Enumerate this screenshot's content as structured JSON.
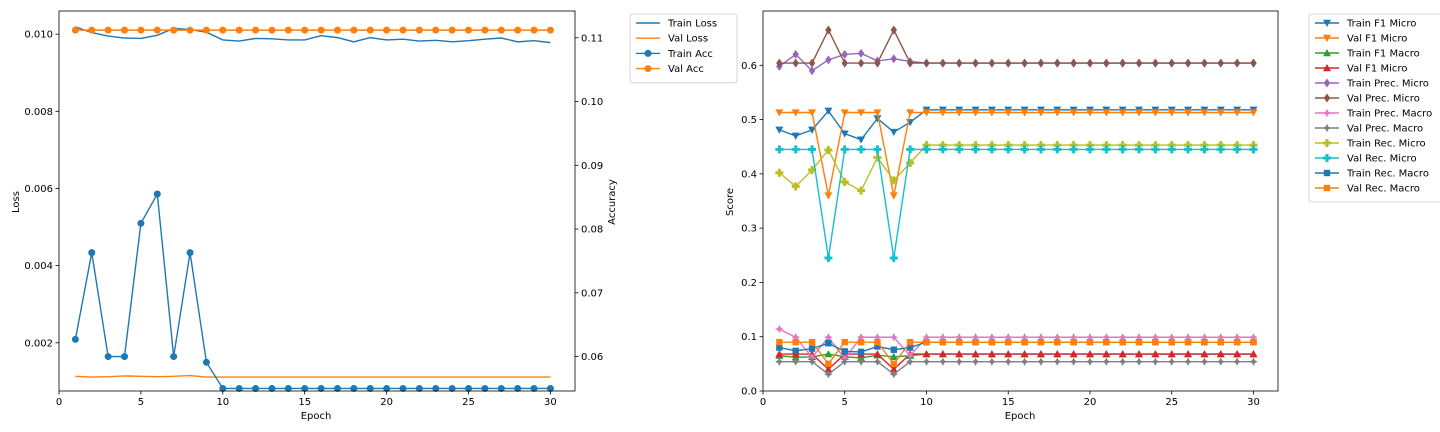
{
  "colors": {
    "blue": "#1f77b4",
    "orange": "#ff7f0e",
    "green": "#2ca02c",
    "red": "#d62728",
    "purple": "#9467bd",
    "brown": "#8c564b",
    "pink": "#e377c2",
    "gray": "#7f7f7f",
    "olive": "#bcbd22",
    "cyan": "#17becf"
  },
  "chart_data": [
    {
      "type": "line",
      "xlabel": "Epoch",
      "ylabel": "Loss",
      "y2label": "Accuracy",
      "xlim": [
        0,
        31.5
      ],
      "ylim": [
        0.00075,
        0.0106
      ],
      "y2lim": [
        0.0546,
        0.1142
      ],
      "xticks": [
        0,
        5,
        10,
        15,
        20,
        25,
        30
      ],
      "yticks": [
        0.002,
        0.004,
        0.006,
        0.008,
        0.01
      ],
      "ytick_labels": [
        "0.002",
        "0.004",
        "0.006",
        "0.008",
        "0.010"
      ],
      "y2ticks": [
        0.06,
        0.07,
        0.08,
        0.09,
        0.1,
        0.11
      ],
      "y2tick_labels": [
        "0.06",
        "0.07",
        "0.08",
        "0.09",
        "0.10",
        "0.11"
      ],
      "legend_position": "outside-right",
      "x": [
        1,
        2,
        3,
        4,
        5,
        6,
        7,
        8,
        9,
        10,
        11,
        12,
        13,
        14,
        15,
        16,
        17,
        18,
        19,
        20,
        21,
        22,
        23,
        24,
        25,
        26,
        27,
        28,
        29,
        30
      ],
      "series": [
        {
          "name": "Train Loss",
          "axis": "left",
          "color": "blue",
          "marker": "none",
          "values": [
            0.01019,
            0.01004,
            0.00995,
            0.0099,
            0.00989,
            0.00997,
            0.01015,
            0.01012,
            0.01005,
            0.00985,
            0.00982,
            0.00989,
            0.00988,
            0.00985,
            0.00985,
            0.00996,
            0.00991,
            0.0098,
            0.00991,
            0.00985,
            0.00987,
            0.00982,
            0.00984,
            0.0098,
            0.00983,
            0.00987,
            0.0099,
            0.0098,
            0.00983,
            0.00978
          ]
        },
        {
          "name": "Val Loss",
          "axis": "left",
          "color": "orange",
          "marker": "none",
          "values": [
            0.00113,
            0.00111,
            0.00112,
            0.00114,
            0.00113,
            0.00112,
            0.00113,
            0.00115,
            0.00111,
            0.00111,
            0.00111,
            0.00111,
            0.00111,
            0.00111,
            0.00111,
            0.00111,
            0.00111,
            0.00111,
            0.00111,
            0.00111,
            0.00111,
            0.00111,
            0.00111,
            0.00111,
            0.00111,
            0.00111,
            0.00111,
            0.00111,
            0.00111,
            0.00111
          ]
        },
        {
          "name": "Train Acc",
          "axis": "right",
          "color": "blue",
          "marker": "circle",
          "values": [
            0.0627,
            0.0763,
            0.06,
            0.06,
            0.0809,
            0.0855,
            0.06,
            0.0763,
            0.0591,
            0.055,
            0.055,
            0.055,
            0.055,
            0.055,
            0.055,
            0.055,
            0.055,
            0.055,
            0.055,
            0.055,
            0.055,
            0.055,
            0.055,
            0.055,
            0.055,
            0.055,
            0.055,
            0.055,
            0.055,
            0.055
          ]
        },
        {
          "name": "Val Acc",
          "axis": "right",
          "color": "orange",
          "marker": "circle",
          "values": [
            0.1112,
            0.1112,
            0.1112,
            0.1112,
            0.1112,
            0.1112,
            0.1112,
            0.1112,
            0.1112,
            0.1112,
            0.1112,
            0.1112,
            0.1112,
            0.1112,
            0.1112,
            0.1112,
            0.1112,
            0.1112,
            0.1112,
            0.1112,
            0.1112,
            0.1112,
            0.1112,
            0.1112,
            0.1112,
            0.1112,
            0.1112,
            0.1112,
            0.1112,
            0.1112
          ]
        }
      ]
    },
    {
      "type": "line",
      "xlabel": "Epoch",
      "ylabel": "Score",
      "xlim": [
        0,
        31.5
      ],
      "ylim": [
        0,
        0.7
      ],
      "xticks": [
        0,
        5,
        10,
        15,
        20,
        25,
        30
      ],
      "yticks": [
        0.0,
        0.1,
        0.2,
        0.3,
        0.4,
        0.5,
        0.6
      ],
      "ytick_labels": [
        "0.0",
        "0.1",
        "0.2",
        "0.3",
        "0.4",
        "0.5",
        "0.6"
      ],
      "legend_position": "outside-right",
      "x": [
        1,
        2,
        3,
        4,
        5,
        6,
        7,
        8,
        9,
        10,
        11,
        12,
        13,
        14,
        15,
        16,
        17,
        18,
        19,
        20,
        21,
        22,
        23,
        24,
        25,
        26,
        27,
        28,
        29,
        30
      ],
      "series": [
        {
          "name": "Train F1 Micro",
          "color": "blue",
          "marker": "triangle-down",
          "values": [
            0.481,
            0.47,
            0.481,
            0.516,
            0.474,
            0.463,
            0.502,
            0.477,
            0.495,
            0.518,
            0.518,
            0.518,
            0.518,
            0.518,
            0.518,
            0.518,
            0.518,
            0.518,
            0.518,
            0.518,
            0.518,
            0.518,
            0.518,
            0.518,
            0.518,
            0.518,
            0.518,
            0.518,
            0.518,
            0.518
          ]
        },
        {
          "name": "Val F1 Micro",
          "color": "orange",
          "marker": "triangle-down",
          "values": [
            0.513,
            0.513,
            0.513,
            0.36,
            0.513,
            0.513,
            0.513,
            0.36,
            0.513,
            0.513,
            0.513,
            0.513,
            0.513,
            0.513,
            0.513,
            0.513,
            0.513,
            0.513,
            0.513,
            0.513,
            0.513,
            0.513,
            0.513,
            0.513,
            0.513,
            0.513,
            0.513,
            0.513,
            0.513,
            0.513
          ]
        },
        {
          "name": "Train F1 Macro",
          "color": "green",
          "marker": "triangle-up",
          "values": [
            0.065,
            0.062,
            0.063,
            0.068,
            0.063,
            0.061,
            0.066,
            0.063,
            0.065,
            0.068,
            0.068,
            0.068,
            0.068,
            0.068,
            0.068,
            0.068,
            0.068,
            0.068,
            0.068,
            0.068,
            0.068,
            0.068,
            0.068,
            0.068,
            0.068,
            0.068,
            0.068,
            0.068,
            0.068,
            0.068
          ]
        },
        {
          "name": "Val F1 Micro",
          "color": "red",
          "marker": "triangle-up",
          "values": [
            0.068,
            0.068,
            0.068,
            0.04,
            0.068,
            0.068,
            0.068,
            0.04,
            0.068,
            0.068,
            0.068,
            0.068,
            0.068,
            0.068,
            0.068,
            0.068,
            0.068,
            0.068,
            0.068,
            0.068,
            0.068,
            0.068,
            0.068,
            0.068,
            0.068,
            0.068,
            0.068,
            0.068,
            0.068,
            0.068
          ]
        },
        {
          "name": "Train Prec. Micro",
          "color": "purple",
          "marker": "diamond",
          "values": [
            0.598,
            0.62,
            0.59,
            0.61,
            0.62,
            0.622,
            0.608,
            0.612,
            0.607,
            0.604,
            0.604,
            0.604,
            0.604,
            0.604,
            0.604,
            0.604,
            0.604,
            0.604,
            0.604,
            0.604,
            0.604,
            0.604,
            0.604,
            0.604,
            0.604,
            0.604,
            0.604,
            0.604,
            0.604,
            0.604
          ]
        },
        {
          "name": "Val Prec. Micro",
          "color": "brown",
          "marker": "diamond",
          "values": [
            0.604,
            0.604,
            0.604,
            0.665,
            0.604,
            0.604,
            0.604,
            0.665,
            0.604,
            0.604,
            0.604,
            0.604,
            0.604,
            0.604,
            0.604,
            0.604,
            0.604,
            0.604,
            0.604,
            0.604,
            0.604,
            0.604,
            0.604,
            0.604,
            0.604,
            0.604,
            0.604,
            0.604,
            0.604,
            0.604
          ]
        },
        {
          "name": "Train Prec. Macro",
          "color": "pink",
          "marker": "star",
          "values": [
            0.114,
            0.099,
            0.062,
            0.099,
            0.06,
            0.099,
            0.099,
            0.099,
            0.065,
            0.099,
            0.099,
            0.099,
            0.099,
            0.099,
            0.099,
            0.099,
            0.099,
            0.099,
            0.099,
            0.099,
            0.099,
            0.099,
            0.099,
            0.099,
            0.099,
            0.099,
            0.099,
            0.099,
            0.099,
            0.099
          ]
        },
        {
          "name": "Val Prec. Macro",
          "color": "gray",
          "marker": "star",
          "values": [
            0.054,
            0.054,
            0.054,
            0.031,
            0.054,
            0.054,
            0.054,
            0.031,
            0.054,
            0.054,
            0.054,
            0.054,
            0.054,
            0.054,
            0.054,
            0.054,
            0.054,
            0.054,
            0.054,
            0.054,
            0.054,
            0.054,
            0.054,
            0.054,
            0.054,
            0.054,
            0.054,
            0.054,
            0.054,
            0.054
          ]
        },
        {
          "name": "Train Rec. Micro",
          "color": "olive",
          "marker": "plus",
          "values": [
            0.402,
            0.377,
            0.407,
            0.444,
            0.385,
            0.369,
            0.43,
            0.388,
            0.42,
            0.453,
            0.453,
            0.453,
            0.453,
            0.453,
            0.453,
            0.453,
            0.453,
            0.453,
            0.453,
            0.453,
            0.453,
            0.453,
            0.453,
            0.453,
            0.453,
            0.453,
            0.453,
            0.453,
            0.453,
            0.453
          ]
        },
        {
          "name": "Val Rec. Micro",
          "color": "cyan",
          "marker": "plus",
          "values": [
            0.445,
            0.445,
            0.445,
            0.245,
            0.445,
            0.445,
            0.445,
            0.245,
            0.445,
            0.445,
            0.445,
            0.445,
            0.445,
            0.445,
            0.445,
            0.445,
            0.445,
            0.445,
            0.445,
            0.445,
            0.445,
            0.445,
            0.445,
            0.445,
            0.445,
            0.445,
            0.445,
            0.445,
            0.445,
            0.445
          ]
        },
        {
          "name": "Train Rec. Macro",
          "color": "blue",
          "marker": "square",
          "values": [
            0.08,
            0.074,
            0.078,
            0.088,
            0.073,
            0.072,
            0.082,
            0.076,
            0.08,
            0.09,
            0.09,
            0.09,
            0.09,
            0.09,
            0.09,
            0.09,
            0.09,
            0.09,
            0.09,
            0.09,
            0.09,
            0.09,
            0.09,
            0.09,
            0.09,
            0.09,
            0.09,
            0.09,
            0.09,
            0.09
          ]
        },
        {
          "name": "Val Rec. Macro",
          "color": "orange",
          "marker": "square",
          "values": [
            0.09,
            0.09,
            0.09,
            0.05,
            0.09,
            0.09,
            0.09,
            0.05,
            0.09,
            0.09,
            0.09,
            0.09,
            0.09,
            0.09,
            0.09,
            0.09,
            0.09,
            0.09,
            0.09,
            0.09,
            0.09,
            0.09,
            0.09,
            0.09,
            0.09,
            0.09,
            0.09,
            0.09,
            0.09,
            0.09
          ]
        }
      ]
    }
  ]
}
